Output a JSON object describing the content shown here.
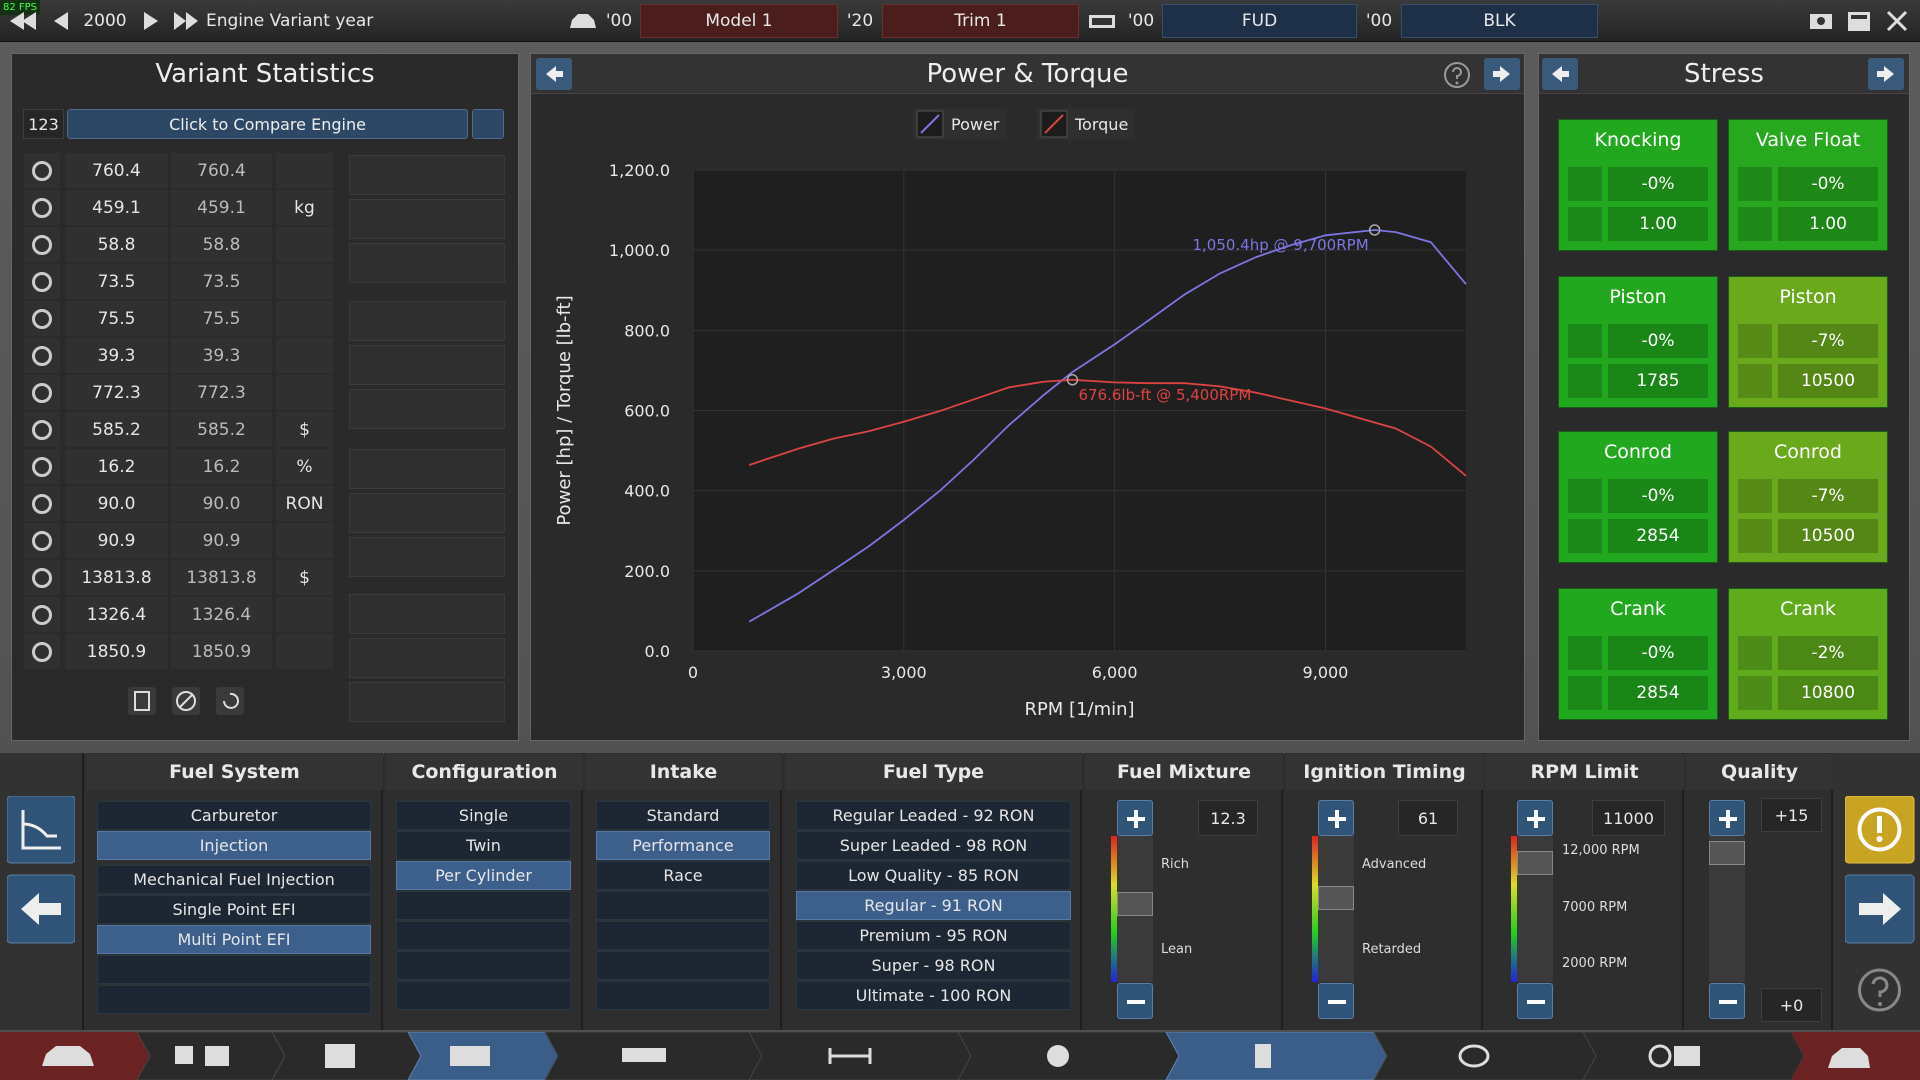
{
  "top_bar": {
    "fps": "82 FPS",
    "year": "2000",
    "year_label": "Engine Variant year",
    "model_year": "'00",
    "model": "Model 1",
    "trim_year": "'20",
    "trim": "Trim 1",
    "family_year": "'00",
    "family": "FUD",
    "variant_year": "'00",
    "variant": "BLK"
  },
  "variant_statistics": {
    "title": "Variant Statistics",
    "engine_id": "123",
    "compare_button": "Click to Compare Engine",
    "rows": [
      {
        "current": "760.4",
        "compare": "760.4"
      },
      {
        "current": "459.1",
        "compare": "459.1",
        "unit": "kg"
      },
      {
        "current": "58.8",
        "compare": "58.8"
      },
      {
        "current": "73.5",
        "compare": "73.5"
      },
      {
        "current": "75.5",
        "compare": "75.5"
      },
      {
        "current": "39.3",
        "compare": "39.3"
      },
      {
        "current": "772.3",
        "compare": "772.3"
      },
      {
        "current": "585.2",
        "compare": "585.2",
        "unit": "$"
      },
      {
        "current": "16.2",
        "compare": "16.2",
        "unit": "%"
      },
      {
        "current": "90.0",
        "compare": "90.0",
        "unit": "RON"
      },
      {
        "current": "90.9",
        "compare": "90.9"
      },
      {
        "current": "13813.8",
        "compare": "13813.8",
        "unit": "$"
      },
      {
        "current": "1326.4",
        "compare": "1326.4"
      },
      {
        "current": "1850.9",
        "compare": "1850.9"
      }
    ]
  },
  "chart_data": {
    "type": "line",
    "title": "Power & Torque",
    "x_label": "RPM [1/min]",
    "y_label": "Power [hp] / Torque [lb-ft]",
    "x": [
      800,
      1500,
      2000,
      2500,
      3000,
      3500,
      4000,
      4500,
      5000,
      5400,
      6000,
      6500,
      7000,
      7500,
      8000,
      8500,
      9000,
      9700,
      10000,
      10500,
      11000
    ],
    "series": [
      {
        "name": "Power",
        "color": "#7d76e2",
        "values": [
          73,
          144,
          202,
          261,
          327,
          398,
          478,
          564,
          640,
          696,
          765,
          827,
          890,
          942,
          982,
          1012,
          1037,
          1050.4,
          1045,
          1020,
          915
        ]
      },
      {
        "name": "Torque",
        "color": "#dc4442",
        "values": [
          464,
          505,
          530,
          548,
          572,
          598,
          628,
          658,
          672,
          676.6,
          670,
          668,
          668,
          660,
          645,
          625,
          605,
          570,
          555,
          510,
          437
        ]
      }
    ],
    "annotations": [
      "1,050.4hp @ 9,700RPM",
      "676.6lb-ft @ 5,400RPM"
    ],
    "xlim": [
      0,
      11000
    ],
    "ylim": [
      0,
      1200
    ],
    "xticks": [
      0,
      {
        "value": 3000,
        "label": "3,000"
      },
      {
        "value": 6000,
        "label": "6,000"
      },
      {
        "value": 9000,
        "label": "9,000"
      }
    ],
    "yticks": [
      {
        "value": 0,
        "label": "0.0"
      },
      {
        "value": 200,
        "label": "200.0"
      },
      {
        "value": 400,
        "label": "400.0"
      },
      {
        "value": 600,
        "label": "600.0"
      },
      {
        "value": 800,
        "label": "800.0"
      },
      {
        "value": 1000,
        "label": "1,000.0"
      },
      {
        "value": 1200,
        "label": "1,200.0"
      }
    ],
    "grid": true
  },
  "stress": {
    "title": "Stress",
    "cards": [
      {
        "title": "Knocking",
        "values": [
          "-0%",
          "1.00"
        ]
      },
      {
        "title": "Valve Float",
        "values": [
          "-0%",
          "1.00"
        ]
      },
      {
        "title": "Piston",
        "values": [
          "-0%",
          "1785"
        ]
      },
      {
        "title": "Piston",
        "values": [
          "-7%",
          "10500"
        ]
      },
      {
        "title": "Conrod",
        "values": [
          "-0%",
          "2854"
        ]
      },
      {
        "title": "Conrod",
        "values": [
          "-7%",
          "10500"
        ]
      },
      {
        "title": "Crank",
        "values": [
          "-0%",
          "2854"
        ]
      },
      {
        "title": "Crank",
        "values": [
          "-2%",
          "10800"
        ]
      }
    ]
  },
  "engine_settings": {
    "fuel_system": {
      "title": "Fuel System",
      "options": [
        "Carburetor",
        "Injection"
      ],
      "selected": 1,
      "sub_options": [
        "Mechanical Fuel Injection",
        "Single Point EFI",
        "Multi Point EFI"
      ],
      "sub_selected": 2
    },
    "configuration": {
      "title": "Configuration",
      "options": [
        "Single",
        "Twin",
        "Per Cylinder"
      ],
      "selected": 2
    },
    "intake": {
      "title": "Intake",
      "options": [
        "Standard",
        "Performance",
        "Race"
      ],
      "selected": 1
    },
    "fuel_type": {
      "title": "Fuel Type",
      "options": [
        "Regular Leaded - 92 RON",
        "Super Leaded - 98 RON",
        "Low Quality - 85 RON",
        "Regular - 91 RON",
        "Premium - 95 RON",
        "Super - 98 RON",
        "Ultimate - 100 RON"
      ],
      "selected": 3
    },
    "fuel_mixture": {
      "title": "Fuel Mixture",
      "value": "12.3",
      "labels": [
        "Rich",
        "Lean"
      ]
    },
    "ignition_timing": {
      "title": "Ignition Timing",
      "value": "61",
      "labels": [
        "Advanced",
        "Retarded"
      ]
    },
    "rpm_limit": {
      "title": "RPM Limit",
      "value": "11000",
      "labels": [
        "12,000 RPM",
        "7000 RPM",
        "2000 RPM"
      ]
    },
    "quality": {
      "title": "Quality",
      "values": [
        "+15",
        "+0"
      ]
    }
  }
}
